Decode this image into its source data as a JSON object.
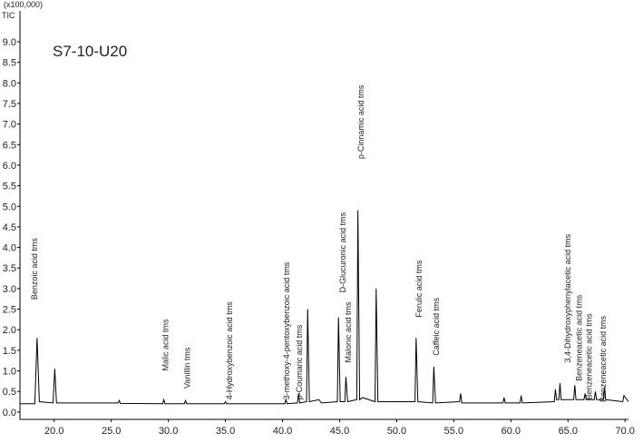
{
  "chart_data": {
    "type": "line",
    "axis_unit": "(x100,000)",
    "y_label": "TIC",
    "title": "S7-10-U20",
    "xlim": [
      17.0,
      70.3
    ],
    "ylim": [
      -0.18,
      9.75
    ],
    "xticks": [
      {
        "value": 20,
        "label": "20.0"
      },
      {
        "value": 25,
        "label": "25.0"
      },
      {
        "value": 30,
        "label": "30.0"
      },
      {
        "value": 35,
        "label": "35.0"
      },
      {
        "value": 40,
        "label": "40.0"
      },
      {
        "value": 45,
        "label": "45.0"
      },
      {
        "value": 50,
        "label": "50.0"
      },
      {
        "value": 55,
        "label": "55.0"
      },
      {
        "value": 60,
        "label": "60.0"
      },
      {
        "value": 65,
        "label": "65.0"
      },
      {
        "value": 70,
        "label": "70.0"
      }
    ],
    "yticks": [
      {
        "value": 0,
        "label": "0.0"
      },
      0.5,
      {
        "value": 1,
        "label": "1.0"
      },
      1.5,
      {
        "value": 2,
        "label": "2.0"
      },
      2.5,
      {
        "value": 3,
        "label": "3.0"
      },
      3.5,
      {
        "value": 4,
        "label": "4.0"
      },
      4.5,
      {
        "value": 5,
        "label": "5.0"
      },
      5.5,
      {
        "value": 6,
        "label": "6.0"
      },
      6.5,
      {
        "value": 7,
        "label": "7.0"
      },
      7.5,
      {
        "value": 8,
        "label": "8.0"
      },
      8.5,
      {
        "value": 9,
        "label": "9.0"
      }
    ],
    "series": [
      {
        "color": "#000000",
        "x": [
          17.0,
          18.3,
          18.5,
          18.7,
          19.9,
          20.05,
          20.2,
          25.6,
          25.7,
          25.8,
          29.5,
          29.6,
          29.7,
          31.4,
          31.5,
          31.6,
          34.9,
          35.0,
          35.1,
          40.2,
          40.3,
          40.4,
          41.3,
          41.4,
          41.5,
          42.1,
          42.2,
          42.35,
          43.2,
          43.4,
          44.8,
          44.9,
          45.05,
          45.45,
          45.55,
          45.7,
          46.5,
          46.6,
          46.75,
          47.0,
          48.1,
          48.2,
          48.35,
          51.6,
          51.7,
          51.85,
          53.15,
          53.25,
          53.4,
          55.5,
          55.6,
          55.7,
          59.3,
          59.4,
          59.5,
          60.8,
          60.9,
          61.0,
          63.8,
          63.9,
          64.0,
          64.2,
          64.3,
          64.4,
          65.5,
          65.6,
          65.7,
          66.4,
          66.5,
          66.6,
          67.3,
          67.4,
          67.5,
          68.1,
          68.2,
          68.3,
          69.8,
          69.9,
          70.3
        ],
        "values": [
          0.2,
          0.2,
          1.8,
          0.25,
          0.22,
          1.05,
          0.22,
          0.22,
          0.28,
          0.21,
          0.2,
          0.3,
          0.2,
          0.2,
          0.28,
          0.2,
          0.2,
          0.25,
          0.2,
          0.2,
          0.3,
          0.2,
          0.22,
          0.45,
          0.22,
          0.25,
          2.5,
          0.25,
          0.3,
          0.22,
          0.25,
          2.3,
          0.25,
          0.25,
          0.85,
          0.25,
          0.3,
          4.9,
          0.3,
          0.35,
          0.25,
          3.0,
          0.25,
          0.25,
          1.8,
          0.25,
          0.22,
          1.1,
          0.22,
          0.25,
          0.45,
          0.22,
          0.22,
          0.35,
          0.22,
          0.22,
          0.4,
          0.22,
          0.25,
          0.55,
          0.3,
          0.3,
          0.7,
          0.3,
          0.3,
          0.65,
          0.3,
          0.3,
          0.45,
          0.3,
          0.3,
          0.5,
          0.3,
          0.3,
          0.6,
          0.3,
          0.25,
          0.4,
          0.25
        ]
      }
    ],
    "annotations": [
      {
        "text": "Benzoic acid tms",
        "x": 18.5,
        "y": 2.73
      },
      {
        "text": "Malic acid tms",
        "x": 30.0,
        "y": 1.0
      },
      {
        "text": "Vanillin tms",
        "x": 31.9,
        "y": 0.57
      },
      {
        "text": "4-Hydroxybenzoic acid tms",
        "x": 35.6,
        "y": 0.3
      },
      {
        "text": "3-methoxy-4-pentoxybenzoic acid tms",
        "x": 40.6,
        "y": 0.3
      },
      {
        "text": "p-Coumaric acid tms",
        "x": 41.7,
        "y": 0.3
      },
      {
        "text": "D-Glucuronic acid tms",
        "x": 45.5,
        "y": 2.9
      },
      {
        "text": "Malonic acid tms",
        "x": 46.0,
        "y": 1.2
      },
      {
        "text": "p-Cinnamic acid tms",
        "x": 47.1,
        "y": 6.15
      },
      {
        "text": "Ferulic acid  tms",
        "x": 52.2,
        "y": 2.3
      },
      {
        "text": "Caffeic acid tms",
        "x": 53.7,
        "y": 1.37
      },
      {
        "text": "3,4-Dihydroxyphenylacetic acid tms",
        "x": 65.2,
        "y": 1.2
      },
      {
        "text": "Benzeneacetic acid tms",
        "x": 66.2,
        "y": 0.75
      },
      {
        "text": "Benzeneacetic acid tms",
        "x": 67.1,
        "y": 0.3
      },
      {
        "text": "Benzeneacetic acid tms",
        "x": 68.3,
        "y": 0.24
      }
    ]
  }
}
